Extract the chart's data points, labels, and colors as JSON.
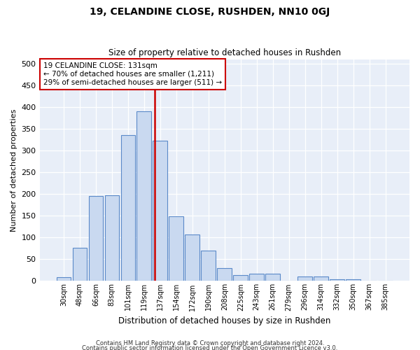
{
  "title": "19, CELANDINE CLOSE, RUSHDEN, NN10 0GJ",
  "subtitle": "Size of property relative to detached houses in Rushden",
  "xlabel": "Distribution of detached houses by size in Rushden",
  "ylabel": "Number of detached properties",
  "categories": [
    "30sqm",
    "48sqm",
    "66sqm",
    "83sqm",
    "101sqm",
    "119sqm",
    "137sqm",
    "154sqm",
    "172sqm",
    "190sqm",
    "208sqm",
    "225sqm",
    "243sqm",
    "261sqm",
    "279sqm",
    "296sqm",
    "314sqm",
    "332sqm",
    "350sqm",
    "367sqm",
    "385sqm"
  ],
  "values": [
    8,
    76,
    196,
    197,
    335,
    390,
    323,
    148,
    107,
    70,
    29,
    13,
    17,
    17,
    0,
    10,
    11,
    4,
    4,
    1,
    1
  ],
  "bar_color": "#c9d9f0",
  "bar_edge_color": "#5b8ac9",
  "vline_color": "#cc0000",
  "annotation_text": "19 CELANDINE CLOSE: 131sqm\n← 70% of detached houses are smaller (1,211)\n29% of semi-detached houses are larger (511) →",
  "annotation_box_color": "#ffffff",
  "annotation_box_edge": "#cc0000",
  "ylim": [
    0,
    510
  ],
  "yticks": [
    0,
    50,
    100,
    150,
    200,
    250,
    300,
    350,
    400,
    450,
    500
  ],
  "bg_color": "#e8eef8",
  "grid_color": "#ffffff",
  "footer1": "Contains HM Land Registry data © Crown copyright and database right 2024.",
  "footer2": "Contains public sector information licensed under the Open Government Licence v3.0."
}
